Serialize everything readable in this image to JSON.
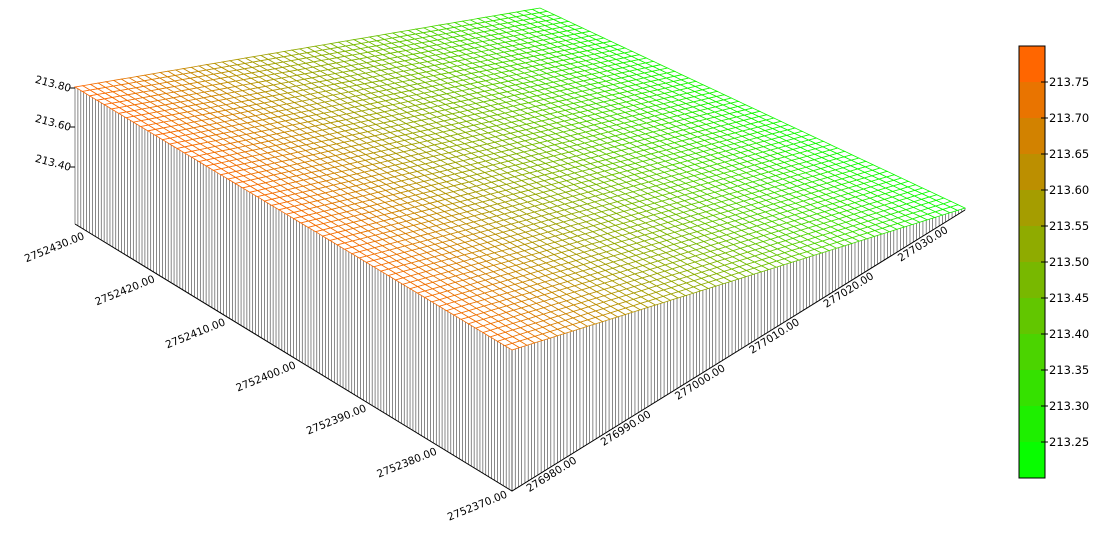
{
  "chart_data": {
    "type": "surface",
    "title": "",
    "x_axis": {
      "ticks": [
        "276980.00",
        "276990.00",
        "277000.00",
        "277010.00",
        "277020.00",
        "277030.00"
      ],
      "range": [
        276972,
        277033
      ]
    },
    "y_axis": {
      "ticks": [
        "2752370.00",
        "2752380.00",
        "2752390.00",
        "2752400.00",
        "2752410.00",
        "2752420.00",
        "2752430.00"
      ],
      "range": [
        2752370,
        2752432
      ]
    },
    "z_axis": {
      "ticks": [
        "213.40",
        "213.60",
        "213.80"
      ],
      "range": [
        213.2,
        213.8
      ]
    },
    "surface": {
      "description_corners": {
        "min_x_min_y": 213.78,
        "min_x_max_y": 213.8,
        "max_x_max_y": 213.28,
        "max_x_min_y": 213.25
      },
      "grid": "wireframe",
      "walls": "vertical hatched sides"
    },
    "colorbar": {
      "labels": [
        "213.75",
        "213.70",
        "213.65",
        "213.60",
        "213.55",
        "213.50",
        "213.45",
        "213.40",
        "213.35",
        "213.30",
        "213.25"
      ],
      "colors": [
        "#ff6600",
        "#e97400",
        "#d28200",
        "#bc8f00",
        "#a59d00",
        "#8fab00",
        "#78b800",
        "#62c600",
        "#4bd400",
        "#35e100",
        "#1eef00",
        "#08fd00"
      ]
    }
  }
}
